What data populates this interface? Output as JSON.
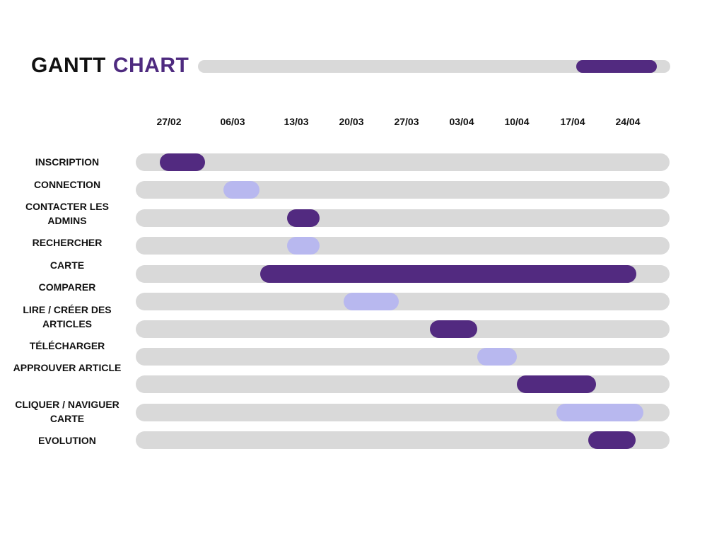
{
  "header": {
    "title_part1": "GANTT",
    "title_part2": "CHART",
    "progress": 0.17
  },
  "colors": {
    "dark": "#522a80",
    "light": "#b8b8ef",
    "track": "#d9d9d9"
  },
  "chart_data": {
    "type": "gantt",
    "dates": [
      "27/02",
      "06/03",
      "13/03",
      "20/03",
      "27/03",
      "03/04",
      "10/04",
      "17/04",
      "24/04"
    ],
    "tasks": [
      {
        "label": "INSCRIPTION",
        "start": "2023-02-26",
        "end": "2023-03-03",
        "color": "dark"
      },
      {
        "label": "CONNECTION",
        "start": "2023-03-05",
        "end": "2023-03-09",
        "color": "light"
      },
      {
        "label": "CONTACTER LES ADMINS",
        "start": "2023-03-12",
        "end": "2023-03-16",
        "color": "dark"
      },
      {
        "label": "RECHERCHER",
        "start": "2023-03-12",
        "end": "2023-03-16",
        "color": "light"
      },
      {
        "label": "CARTE",
        "start": "2023-03-09",
        "end": "2023-04-25",
        "color": "dark"
      },
      {
        "label": "COMPARER",
        "start": "2023-03-19",
        "end": "2023-03-26",
        "color": "light"
      },
      {
        "label": "LIRE / CRÉER DES ARTICLES",
        "start": "2023-03-30",
        "end": "2023-04-05",
        "color": "dark"
      },
      {
        "label": "TÉLÉCHARGER",
        "start": "2023-04-05",
        "end": "2023-04-10",
        "color": "light"
      },
      {
        "label": "APPROUVER ARTICLE",
        "start": "2023-04-10",
        "end": "2023-04-20",
        "color": "dark"
      },
      {
        "label": "CLIQUER / NAVIGUER CARTE",
        "start": "2023-04-15",
        "end": "2023-04-26",
        "color": "light"
      },
      {
        "label": "EVOLUTION",
        "start": "2023-04-19",
        "end": "2023-04-25",
        "color": "dark"
      }
    ]
  }
}
